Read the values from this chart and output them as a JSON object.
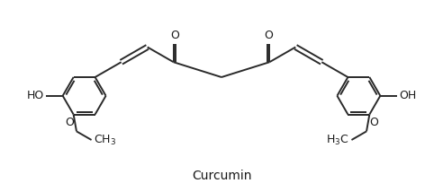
{
  "title": "Curcumin",
  "title_fontsize": 10,
  "bond_color": "#2a2a2a",
  "bond_lw": 1.4,
  "text_color": "#1a1a1a",
  "bg_color": "#ffffff",
  "figsize": [
    4.92,
    2.14
  ],
  "dpi": 100,
  "xlim": [
    0,
    10
  ],
  "ylim": [
    0,
    4.35
  ]
}
